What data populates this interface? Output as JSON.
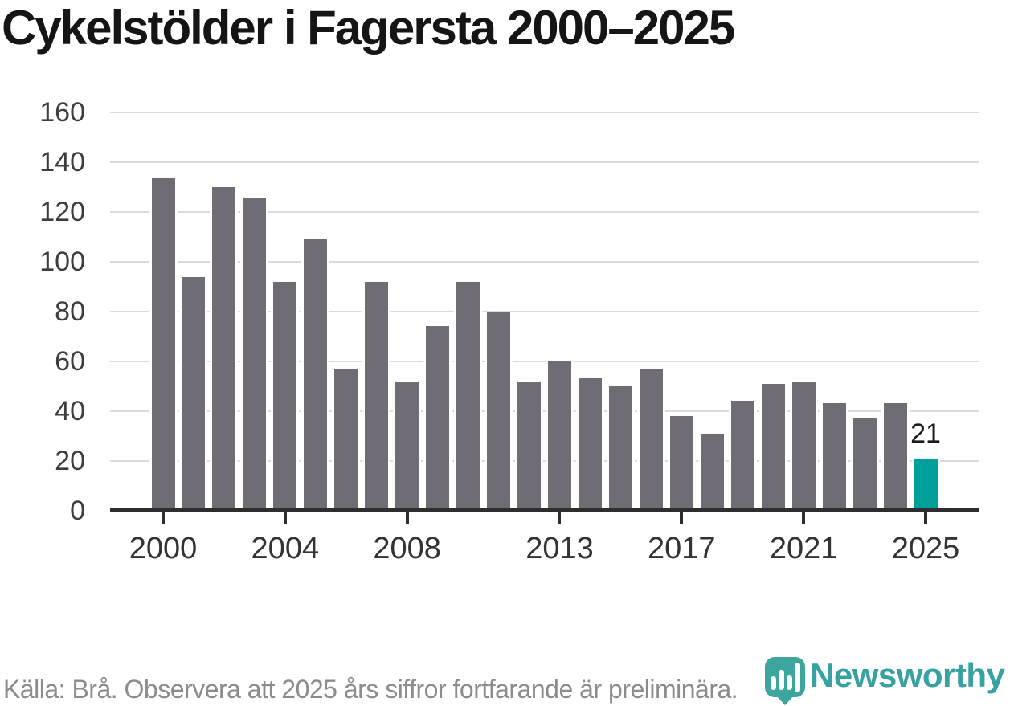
{
  "header": {
    "title": "Cykelstölder i Fagersta 2000–2025"
  },
  "chart_data": {
    "type": "bar",
    "title": "Cykelstölder i Fagersta 2000–2025",
    "categories": [
      2000,
      2001,
      2002,
      2003,
      2004,
      2005,
      2006,
      2007,
      2008,
      2009,
      2010,
      2011,
      2012,
      2013,
      2014,
      2015,
      2016,
      2017,
      2018,
      2019,
      2020,
      2021,
      2022,
      2023,
      2024,
      2025
    ],
    "values": [
      134,
      94,
      130,
      126,
      92,
      109,
      57,
      92,
      52,
      74,
      92,
      80,
      52,
      60,
      53,
      50,
      57,
      38,
      31,
      44,
      51,
      52,
      43,
      37,
      43,
      21
    ],
    "ylim": [
      0,
      160
    ],
    "yticks": [
      0,
      20,
      40,
      60,
      80,
      100,
      120,
      140,
      160
    ],
    "xticks": [
      2000,
      2004,
      2008,
      2013,
      2017,
      2021,
      2025
    ],
    "grid": true,
    "legend_position": "none",
    "bar_color": "#6F6C75",
    "highlight_index": 25,
    "highlight_color": "#00A09A",
    "annotation": {
      "text": "21",
      "category": 2025
    }
  },
  "footer": {
    "source_note": "Källa: Brå. Observera att 2025 års siffror fortfarande är preliminära.",
    "brand": {
      "name": "Newsworthy",
      "mark_color": "#3BA59E",
      "text_color": "#38A1A2"
    }
  }
}
